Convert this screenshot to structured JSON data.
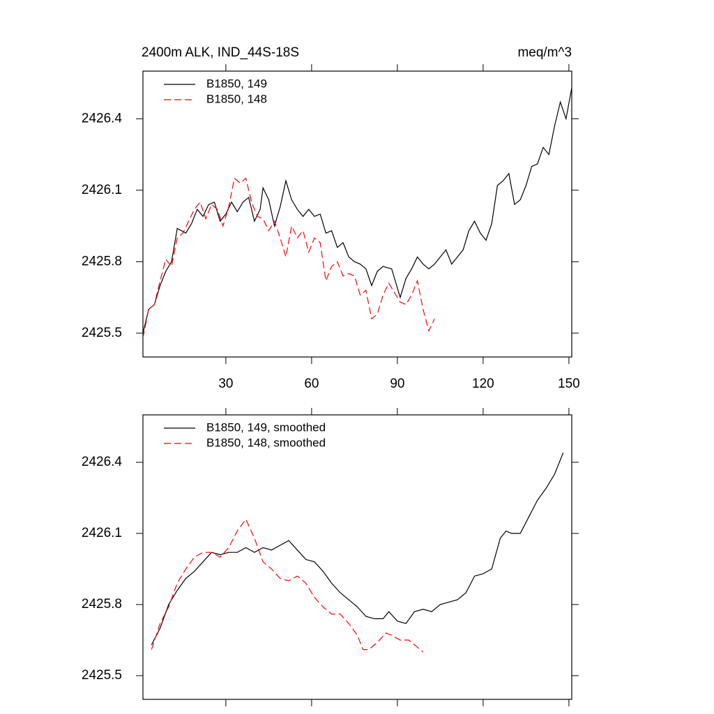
{
  "chart_data": [
    {
      "type": "line",
      "title": "2400m ALK, IND_44S-18S",
      "subtitle": "meq/m^3",
      "xlim": [
        1,
        151
      ],
      "xticks": [
        30,
        60,
        90,
        120,
        150
      ],
      "show_xtick_labels": true,
      "ylim": [
        2425.4,
        2426.6
      ],
      "yticks": [
        2425.5,
        2425.8,
        2426.1,
        2426.4
      ],
      "legend": "top-left",
      "series": [
        {
          "name": "B1850, 149",
          "color": "#000000",
          "dash": false,
          "x": [
            1,
            3,
            5,
            7,
            9,
            11,
            13,
            16,
            18,
            20,
            22,
            24,
            26,
            28,
            30,
            32,
            34,
            36,
            38,
            40,
            42,
            43,
            45,
            47,
            49,
            51,
            53,
            55,
            57,
            59,
            61,
            63,
            65,
            67,
            69,
            71,
            73,
            75,
            77,
            79,
            81,
            83,
            85,
            88,
            91,
            93,
            95,
            97,
            99,
            101,
            103,
            105,
            107,
            109,
            111,
            113,
            115,
            117,
            119,
            121,
            123,
            125,
            127,
            129,
            131,
            133,
            135,
            137,
            139,
            141,
            143,
            145,
            147,
            149,
            151
          ],
          "values": [
            2425.5,
            2425.6,
            2425.62,
            2425.7,
            2425.76,
            2425.8,
            2425.94,
            2425.92,
            2425.96,
            2426.02,
            2425.99,
            2426.04,
            2426.05,
            2425.97,
            2426.0,
            2426.05,
            2426.01,
            2426.05,
            2426.07,
            2425.97,
            2426.02,
            2426.11,
            2426.06,
            2425.95,
            2426.03,
            2426.14,
            2426.06,
            2426.02,
            2425.99,
            2426.02,
            2425.99,
            2426.0,
            2425.92,
            2425.93,
            2425.86,
            2425.88,
            2425.82,
            2425.8,
            2425.79,
            2425.77,
            2425.7,
            2425.76,
            2425.78,
            2425.77,
            2425.65,
            2425.73,
            2425.77,
            2425.82,
            2425.79,
            2425.77,
            2425.79,
            2425.82,
            2425.85,
            2425.79,
            2425.82,
            2425.85,
            2425.93,
            2425.97,
            2425.92,
            2425.89,
            2425.96,
            2426.12,
            2426.14,
            2426.17,
            2426.04,
            2426.06,
            2426.12,
            2426.2,
            2426.21,
            2426.28,
            2426.25,
            2426.37,
            2426.47,
            2426.4,
            2426.53
          ]
        },
        {
          "name": "B1850, 148",
          "color": "#ff0000",
          "dash": true,
          "x": [
            1,
            3,
            5,
            7,
            9,
            11,
            13,
            15,
            17,
            19,
            21,
            23,
            25,
            27,
            29,
            31,
            33,
            35,
            37,
            39,
            41,
            43,
            45,
            47,
            49,
            51,
            53,
            55,
            57,
            59,
            61,
            63,
            65,
            67,
            69,
            71,
            73,
            75,
            77,
            79,
            81,
            83,
            85,
            87,
            89,
            91,
            93,
            95,
            97,
            99,
            101,
            103
          ],
          "values": [
            2425.48,
            2425.6,
            2425.62,
            2425.72,
            2425.81,
            2425.78,
            2425.9,
            2425.92,
            2425.97,
            2426.02,
            2426.05,
            2425.98,
            2426.04,
            2426.02,
            2425.95,
            2426.03,
            2426.15,
            2426.13,
            2426.15,
            2426.05,
            2425.99,
            2425.98,
            2425.93,
            2425.97,
            2425.9,
            2425.82,
            2425.95,
            2425.9,
            2425.93,
            2425.84,
            2425.9,
            2425.88,
            2425.72,
            2425.78,
            2425.8,
            2425.74,
            2425.75,
            2425.74,
            2425.66,
            2425.68,
            2425.56,
            2425.58,
            2425.66,
            2425.71,
            2425.67,
            2425.63,
            2425.62,
            2425.66,
            2425.72,
            2425.6,
            2425.51,
            2425.56
          ]
        }
      ]
    },
    {
      "type": "line",
      "xlim": [
        1,
        151
      ],
      "xticks": [
        30,
        60,
        90,
        120,
        150
      ],
      "show_xtick_labels": false,
      "ylim": [
        2425.4,
        2426.6
      ],
      "yticks": [
        2425.5,
        2425.8,
        2426.1,
        2426.4
      ],
      "legend": "top-left",
      "series": [
        {
          "name": "B1850, 149, smoothed",
          "color": "#000000",
          "dash": false,
          "x": [
            4,
            7,
            10,
            13,
            16,
            19,
            22,
            25,
            28,
            31,
            34,
            37,
            40,
            43,
            46,
            49,
            52,
            55,
            58,
            61,
            64,
            67,
            70,
            73,
            76,
            79,
            82,
            85,
            87,
            90,
            93,
            96,
            99,
            102,
            105,
            108,
            111,
            114,
            117,
            120,
            123,
            126,
            128,
            130,
            133,
            136,
            139,
            142,
            145,
            148
          ],
          "values": [
            2425.63,
            2425.7,
            2425.8,
            2425.86,
            2425.91,
            2425.94,
            2425.98,
            2426.02,
            2426.01,
            2426.02,
            2426.02,
            2426.04,
            2426.02,
            2426.04,
            2426.03,
            2426.05,
            2426.07,
            2426.03,
            2425.99,
            2425.98,
            2425.94,
            2425.89,
            2425.85,
            2425.82,
            2425.79,
            2425.75,
            2425.74,
            2425.74,
            2425.77,
            2425.73,
            2425.72,
            2425.77,
            2425.78,
            2425.77,
            2425.8,
            2425.81,
            2425.82,
            2425.85,
            2425.92,
            2425.93,
            2425.95,
            2426.08,
            2426.11,
            2426.1,
            2426.1,
            2426.17,
            2426.24,
            2426.29,
            2426.35,
            2426.44
          ]
        },
        {
          "name": "B1850, 148, smoothed",
          "color": "#ff0000",
          "dash": true,
          "x": [
            4,
            7,
            10,
            13,
            16,
            19,
            22,
            25,
            28,
            31,
            34,
            37,
            40,
            43,
            46,
            49,
            52,
            55,
            58,
            61,
            64,
            67,
            70,
            73,
            76,
            78,
            80,
            83,
            86,
            88,
            91,
            94,
            97,
            99
          ],
          "values": [
            2425.61,
            2425.72,
            2425.79,
            2425.89,
            2425.95,
            2426.0,
            2426.02,
            2426.02,
            2426.0,
            2426.04,
            2426.11,
            2426.16,
            2426.08,
            2425.98,
            2425.95,
            2425.91,
            2425.9,
            2425.92,
            2425.89,
            2425.83,
            2425.79,
            2425.76,
            2425.76,
            2425.72,
            2425.67,
            2425.61,
            2425.61,
            2425.64,
            2425.68,
            2425.67,
            2425.65,
            2425.65,
            2425.62,
            2425.6
          ]
        }
      ]
    }
  ]
}
